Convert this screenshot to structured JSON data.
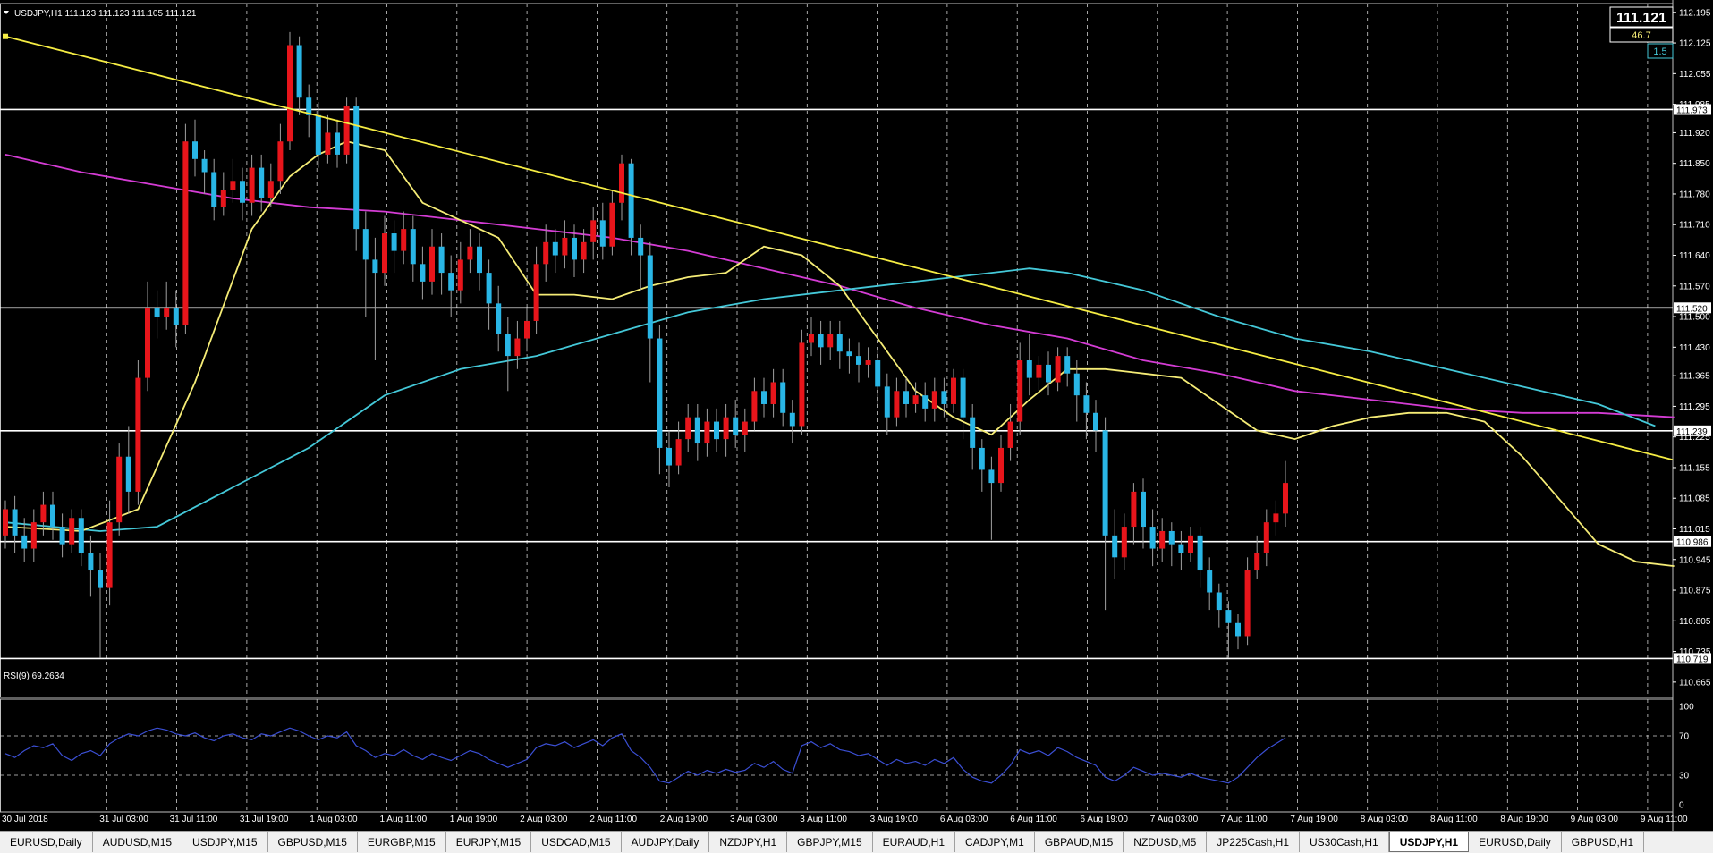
{
  "symbol_header": "USDJPY,H1  111.123 111.123 111.105 111.121",
  "current_price": "111.121",
  "spread_value": "46.7",
  "indicator_box": "1.5",
  "rsi_label": "RSI(9) 69.2634",
  "colors": {
    "bull": "#e8151b",
    "bear": "#29b6e6",
    "ma_fast": "#f5ec76",
    "ma_mid": "#44c8d8",
    "ma_slow": "#d43cd4",
    "trendline": "#f5ec43",
    "hline": "#ffffff",
    "rsi": "#3b4fd4"
  },
  "chart_data": {
    "type": "candlestick",
    "ylim": [
      110.63,
      112.215
    ],
    "y_ticks": [
      "112.195",
      "112.125",
      "112.055",
      "111.985",
      "111.920",
      "111.850",
      "111.780",
      "111.710",
      "111.640",
      "111.570",
      "111.500",
      "111.430",
      "111.365",
      "111.295",
      "111.225",
      "111.155",
      "111.085",
      "111.015",
      "110.945",
      "110.875",
      "110.805",
      "110.735",
      "110.665"
    ],
    "x_labels": [
      "30 Jul 2018",
      "31 Jul 03:00",
      "31 Jul 11:00",
      "31 Jul 19:00",
      "1 Aug 03:00",
      "1 Aug 11:00",
      "1 Aug 19:00",
      "2 Aug 03:00",
      "2 Aug 11:00",
      "2 Aug 19:00",
      "3 Aug 03:00",
      "3 Aug 11:00",
      "3 Aug 19:00",
      "6 Aug 03:00",
      "6 Aug 11:00",
      "6 Aug 19:00",
      "7 Aug 03:00",
      "7 Aug 11:00",
      "7 Aug 19:00",
      "8 Aug 03:00",
      "8 Aug 11:00",
      "8 Aug 19:00",
      "9 Aug 03:00",
      "9 Aug 11:00"
    ],
    "horizontal_levels": [
      {
        "label": "111.973",
        "value": 111.973
      },
      {
        "label": "111.520",
        "value": 111.52
      },
      {
        "label": "111.239",
        "value": 111.239
      },
      {
        "label": "110.986",
        "value": 110.986
      },
      {
        "label": "110.719",
        "value": 110.719
      }
    ],
    "trendline": {
      "from_bar": 0,
      "from_price": 112.14,
      "to_bar": 220,
      "to_price": 110.93
    },
    "ma_fast": [
      [
        0,
        111.02
      ],
      [
        8,
        111.01
      ],
      [
        14,
        111.06
      ],
      [
        20,
        111.35
      ],
      [
        26,
        111.7
      ],
      [
        30,
        111.82
      ],
      [
        33,
        111.87
      ],
      [
        36,
        111.9
      ],
      [
        40,
        111.88
      ],
      [
        44,
        111.76
      ],
      [
        48,
        111.72
      ],
      [
        52,
        111.68
      ],
      [
        56,
        111.55
      ],
      [
        60,
        111.55
      ],
      [
        64,
        111.54
      ],
      [
        68,
        111.57
      ],
      [
        72,
        111.59
      ],
      [
        76,
        111.6
      ],
      [
        80,
        111.66
      ],
      [
        84,
        111.64
      ],
      [
        88,
        111.57
      ],
      [
        92,
        111.45
      ],
      [
        96,
        111.33
      ],
      [
        100,
        111.27
      ],
      [
        104,
        111.23
      ],
      [
        108,
        111.31
      ],
      [
        112,
        111.38
      ],
      [
        116,
        111.38
      ],
      [
        120,
        111.37
      ],
      [
        124,
        111.36
      ],
      [
        128,
        111.3
      ],
      [
        132,
        111.24
      ],
      [
        136,
        111.22
      ],
      [
        140,
        111.25
      ],
      [
        144,
        111.27
      ],
      [
        148,
        111.28
      ],
      [
        152,
        111.28
      ],
      [
        156,
        111.26
      ],
      [
        160,
        111.18
      ],
      [
        164,
        111.08
      ],
      [
        168,
        110.98
      ],
      [
        172,
        110.94
      ],
      [
        176,
        110.93
      ]
    ],
    "ma_mid": [
      [
        0,
        111.03
      ],
      [
        10,
        111.01
      ],
      [
        16,
        111.02
      ],
      [
        24,
        111.11
      ],
      [
        32,
        111.2
      ],
      [
        40,
        111.32
      ],
      [
        48,
        111.38
      ],
      [
        56,
        111.41
      ],
      [
        64,
        111.46
      ],
      [
        72,
        111.51
      ],
      [
        80,
        111.54
      ],
      [
        88,
        111.56
      ],
      [
        96,
        111.58
      ],
      [
        104,
        111.6
      ],
      [
        108,
        111.61
      ],
      [
        112,
        111.6
      ],
      [
        120,
        111.56
      ],
      [
        128,
        111.5
      ],
      [
        136,
        111.45
      ],
      [
        144,
        111.42
      ],
      [
        152,
        111.38
      ],
      [
        160,
        111.34
      ],
      [
        168,
        111.3
      ],
      [
        174,
        111.25
      ]
    ],
    "ma_slow": [
      [
        0,
        111.87
      ],
      [
        8,
        111.83
      ],
      [
        16,
        111.8
      ],
      [
        24,
        111.77
      ],
      [
        32,
        111.75
      ],
      [
        40,
        111.74
      ],
      [
        48,
        111.72
      ],
      [
        56,
        111.7
      ],
      [
        64,
        111.68
      ],
      [
        72,
        111.65
      ],
      [
        80,
        111.61
      ],
      [
        88,
        111.57
      ],
      [
        96,
        111.52
      ],
      [
        104,
        111.48
      ],
      [
        112,
        111.45
      ],
      [
        120,
        111.4
      ],
      [
        128,
        111.37
      ],
      [
        136,
        111.33
      ],
      [
        144,
        111.31
      ],
      [
        152,
        111.29
      ],
      [
        160,
        111.28
      ],
      [
        168,
        111.28
      ],
      [
        176,
        111.27
      ]
    ],
    "candles": [
      [
        111.0,
        111.06,
        111.08,
        110.97
      ],
      [
        111.06,
        111.0,
        111.09,
        110.96
      ],
      [
        111.0,
        110.97,
        111.04,
        110.94
      ],
      [
        110.97,
        111.03,
        111.06,
        110.94
      ],
      [
        111.03,
        111.07,
        111.1,
        111.0
      ],
      [
        111.07,
        111.02,
        111.1,
        110.99
      ],
      [
        111.02,
        110.98,
        111.05,
        110.95
      ],
      [
        110.98,
        111.04,
        111.06,
        110.96
      ],
      [
        111.04,
        110.96,
        111.06,
        110.93
      ],
      [
        110.96,
        110.92,
        111.0,
        110.86
      ],
      [
        110.92,
        110.88,
        110.96,
        110.72
      ],
      [
        110.88,
        111.03,
        111.08,
        110.84
      ],
      [
        111.03,
        111.18,
        111.21,
        111.0
      ],
      [
        111.18,
        111.1,
        111.25,
        111.05
      ],
      [
        111.1,
        111.36,
        111.4,
        111.07
      ],
      [
        111.36,
        111.52,
        111.58,
        111.33
      ],
      [
        111.52,
        111.5,
        111.56,
        111.45
      ],
      [
        111.5,
        111.52,
        111.58,
        111.47
      ],
      [
        111.52,
        111.48,
        111.56,
        111.43
      ],
      [
        111.48,
        111.9,
        111.94,
        111.46
      ],
      [
        111.9,
        111.86,
        111.95,
        111.82
      ],
      [
        111.86,
        111.83,
        111.88,
        111.78
      ],
      [
        111.83,
        111.75,
        111.86,
        111.72
      ],
      [
        111.75,
        111.79,
        111.83,
        111.73
      ],
      [
        111.79,
        111.81,
        111.86,
        111.76
      ],
      [
        111.81,
        111.76,
        111.84,
        111.72
      ],
      [
        111.76,
        111.84,
        111.87,
        111.73
      ],
      [
        111.84,
        111.77,
        111.87,
        111.74
      ],
      [
        111.77,
        111.81,
        111.85,
        111.75
      ],
      [
        111.81,
        111.9,
        111.94,
        111.78
      ],
      [
        111.9,
        112.12,
        112.15,
        111.88
      ],
      [
        112.12,
        112.0,
        112.14,
        111.96
      ],
      [
        112.0,
        111.96,
        112.03,
        111.91
      ],
      [
        111.96,
        111.87,
        111.99,
        111.84
      ],
      [
        111.87,
        111.92,
        111.96,
        111.85
      ],
      [
        111.92,
        111.87,
        111.95,
        111.84
      ],
      [
        111.87,
        111.98,
        112.0,
        111.85
      ],
      [
        111.98,
        111.7,
        112.0,
        111.65
      ],
      [
        111.7,
        111.63,
        111.74,
        111.5
      ],
      [
        111.63,
        111.6,
        111.68,
        111.4
      ],
      [
        111.6,
        111.69,
        111.73,
        111.57
      ],
      [
        111.69,
        111.65,
        111.72,
        111.6
      ],
      [
        111.65,
        111.7,
        111.74,
        111.62
      ],
      [
        111.7,
        111.62,
        111.73,
        111.58
      ],
      [
        111.62,
        111.58,
        111.66,
        111.54
      ],
      [
        111.58,
        111.66,
        111.7,
        111.55
      ],
      [
        111.66,
        111.6,
        111.69,
        111.55
      ],
      [
        111.6,
        111.56,
        111.64,
        111.5
      ],
      [
        111.56,
        111.63,
        111.67,
        111.53
      ],
      [
        111.63,
        111.66,
        111.7,
        111.6
      ],
      [
        111.66,
        111.6,
        111.69,
        111.56
      ],
      [
        111.6,
        111.53,
        111.63,
        111.47
      ],
      [
        111.53,
        111.46,
        111.57,
        111.42
      ],
      [
        111.46,
        111.41,
        111.5,
        111.33
      ],
      [
        111.41,
        111.45,
        111.49,
        111.38
      ],
      [
        111.45,
        111.49,
        111.52,
        111.42
      ],
      [
        111.49,
        111.62,
        111.66,
        111.46
      ],
      [
        111.62,
        111.67,
        111.71,
        111.58
      ],
      [
        111.67,
        111.64,
        111.7,
        111.6
      ],
      [
        111.64,
        111.68,
        111.72,
        111.61
      ],
      [
        111.68,
        111.63,
        111.71,
        111.59
      ],
      [
        111.63,
        111.67,
        111.7,
        111.6
      ],
      [
        111.67,
        111.72,
        111.75,
        111.63
      ],
      [
        111.72,
        111.66,
        111.76,
        111.63
      ],
      [
        111.66,
        111.76,
        111.79,
        111.64
      ],
      [
        111.76,
        111.85,
        111.87,
        111.72
      ],
      [
        111.85,
        111.68,
        111.86,
        111.64
      ],
      [
        111.68,
        111.64,
        111.71,
        111.56
      ],
      [
        111.64,
        111.45,
        111.67,
        111.35
      ],
      [
        111.45,
        111.2,
        111.48,
        111.14
      ],
      [
        111.2,
        111.16,
        111.24,
        111.11
      ],
      [
        111.16,
        111.22,
        111.26,
        111.14
      ],
      [
        111.22,
        111.27,
        111.3,
        111.19
      ],
      [
        111.27,
        111.21,
        111.3,
        111.17
      ],
      [
        111.21,
        111.26,
        111.29,
        111.18
      ],
      [
        111.26,
        111.22,
        111.29,
        111.19
      ],
      [
        111.22,
        111.27,
        111.3,
        111.18
      ],
      [
        111.27,
        111.23,
        111.31,
        111.2
      ],
      [
        111.23,
        111.26,
        111.29,
        111.19
      ],
      [
        111.26,
        111.33,
        111.36,
        111.24
      ],
      [
        111.33,
        111.3,
        111.36,
        111.27
      ],
      [
        111.3,
        111.35,
        111.38,
        111.27
      ],
      [
        111.35,
        111.28,
        111.38,
        111.25
      ],
      [
        111.28,
        111.25,
        111.31,
        111.21
      ],
      [
        111.25,
        111.44,
        111.47,
        111.23
      ],
      [
        111.44,
        111.46,
        111.5,
        111.41
      ],
      [
        111.46,
        111.43,
        111.49,
        111.39
      ],
      [
        111.43,
        111.46,
        111.49,
        111.4
      ],
      [
        111.46,
        111.42,
        111.49,
        111.38
      ],
      [
        111.42,
        111.41,
        111.45,
        111.37
      ],
      [
        111.41,
        111.39,
        111.44,
        111.35
      ],
      [
        111.39,
        111.4,
        111.43,
        111.36
      ],
      [
        111.4,
        111.34,
        111.43,
        111.3
      ],
      [
        111.34,
        111.27,
        111.37,
        111.23
      ],
      [
        111.27,
        111.33,
        111.36,
        111.25
      ],
      [
        111.33,
        111.3,
        111.36,
        111.27
      ],
      [
        111.3,
        111.32,
        111.35,
        111.28
      ],
      [
        111.32,
        111.29,
        111.35,
        111.26
      ],
      [
        111.29,
        111.33,
        111.36,
        111.26
      ],
      [
        111.33,
        111.3,
        111.36,
        111.27
      ],
      [
        111.3,
        111.36,
        111.38,
        111.28
      ],
      [
        111.36,
        111.27,
        111.38,
        111.22
      ],
      [
        111.27,
        111.2,
        111.3,
        111.15
      ],
      [
        111.2,
        111.15,
        111.22,
        111.1
      ],
      [
        111.15,
        111.12,
        111.18,
        110.99
      ],
      [
        111.12,
        111.2,
        111.23,
        111.1
      ],
      [
        111.2,
        111.26,
        111.3,
        111.17
      ],
      [
        111.26,
        111.4,
        111.44,
        111.23
      ],
      [
        111.4,
        111.36,
        111.46,
        111.32
      ],
      [
        111.36,
        111.39,
        111.41,
        111.33
      ],
      [
        111.39,
        111.35,
        111.42,
        111.32
      ],
      [
        111.35,
        111.41,
        111.43,
        111.33
      ],
      [
        111.41,
        111.37,
        111.43,
        111.34
      ],
      [
        111.37,
        111.32,
        111.4,
        111.26
      ],
      [
        111.32,
        111.28,
        111.35,
        111.22
      ],
      [
        111.28,
        111.24,
        111.31,
        111.19
      ],
      [
        111.24,
        111.0,
        111.27,
        110.83
      ],
      [
        111.0,
        110.95,
        111.06,
        110.9
      ],
      [
        110.95,
        111.02,
        111.05,
        110.92
      ],
      [
        111.02,
        111.1,
        111.12,
        110.98
      ],
      [
        111.1,
        111.02,
        111.13,
        110.97
      ],
      [
        111.02,
        110.97,
        111.06,
        110.93
      ],
      [
        110.97,
        111.01,
        111.04,
        110.94
      ],
      [
        111.01,
        110.98,
        111.03,
        110.93
      ],
      [
        110.98,
        110.96,
        111.01,
        110.92
      ],
      [
        110.96,
        111.0,
        111.02,
        110.94
      ],
      [
        111.0,
        110.92,
        111.02,
        110.88
      ],
      [
        110.92,
        110.87,
        110.95,
        110.83
      ],
      [
        110.87,
        110.83,
        110.89,
        110.79
      ],
      [
        110.83,
        110.8,
        110.85,
        110.72
      ],
      [
        110.8,
        110.77,
        110.82,
        110.74
      ],
      [
        110.77,
        110.92,
        110.95,
        110.75
      ],
      [
        110.92,
        110.96,
        111.0,
        110.9
      ],
      [
        110.96,
        111.03,
        111.06,
        110.93
      ],
      [
        111.03,
        111.05,
        111.08,
        111.0
      ],
      [
        111.05,
        111.12,
        111.17,
        111.02
      ]
    ],
    "rsi": {
      "label": "RSI(9) 69.2634",
      "ylim": [
        0,
        100
      ],
      "levels": [
        70,
        30
      ],
      "ticks": [
        "100",
        "70",
        "30",
        "0"
      ],
      "values": [
        52,
        48,
        55,
        60,
        58,
        62,
        50,
        45,
        52,
        55,
        50,
        62,
        68,
        72,
        70,
        75,
        78,
        76,
        72,
        70,
        73,
        68,
        65,
        70,
        72,
        68,
        66,
        72,
        70,
        74,
        78,
        75,
        70,
        66,
        70,
        68,
        74,
        60,
        55,
        48,
        52,
        50,
        56,
        50,
        46,
        52,
        48,
        45,
        50,
        55,
        52,
        46,
        42,
        38,
        42,
        46,
        58,
        62,
        60,
        64,
        58,
        62,
        66,
        60,
        68,
        72,
        55,
        48,
        38,
        24,
        22,
        28,
        34,
        30,
        35,
        32,
        36,
        33,
        35,
        42,
        38,
        44,
        36,
        32,
        60,
        64,
        58,
        62,
        56,
        54,
        50,
        52,
        46,
        40,
        46,
        42,
        44,
        40,
        46,
        42,
        48,
        36,
        28,
        24,
        22,
        30,
        40,
        56,
        52,
        55,
        50,
        58,
        54,
        48,
        44,
        40,
        28,
        24,
        30,
        38,
        34,
        30,
        32,
        30,
        28,
        32,
        28,
        26,
        24,
        22,
        28,
        38,
        48,
        56,
        62,
        68
      ]
    }
  },
  "tabs": [
    {
      "label": "EURUSD,Daily"
    },
    {
      "label": "AUDUSD,M15"
    },
    {
      "label": "USDJPY,M15"
    },
    {
      "label": "GBPUSD,M15"
    },
    {
      "label": "EURGBP,M15"
    },
    {
      "label": "EURJPY,M15"
    },
    {
      "label": "USDCAD,M15"
    },
    {
      "label": "AUDJPY,Daily"
    },
    {
      "label": "NZDJPY,H1"
    },
    {
      "label": "GBPJPY,M15"
    },
    {
      "label": "EURAUD,H1"
    },
    {
      "label": "CADJPY,M1"
    },
    {
      "label": "GBPAUD,M15"
    },
    {
      "label": "NZDUSD,M5"
    },
    {
      "label": "JP225Cash,H1"
    },
    {
      "label": "US30Cash,H1"
    },
    {
      "label": "USDJPY,H1",
      "active": true
    },
    {
      "label": "EURUSD,Daily"
    },
    {
      "label": "GBPUSD,H1"
    }
  ]
}
